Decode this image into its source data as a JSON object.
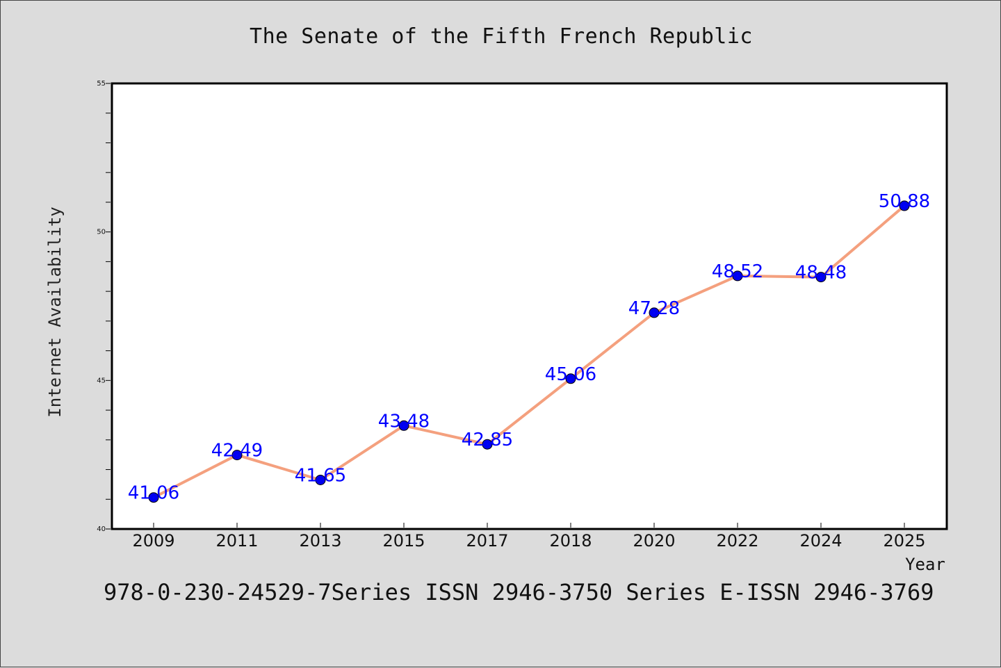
{
  "chart_data": {
    "type": "line",
    "title": "The Senate of the Fifth French Republic",
    "xlabel": "Year",
    "ylabel": "Internet Availability",
    "categories": [
      "2009",
      "2011",
      "2013",
      "2015",
      "2017",
      "2018",
      "2020",
      "2022",
      "2024",
      "2025"
    ],
    "values": [
      41.06,
      42.49,
      41.65,
      43.48,
      42.85,
      45.06,
      47.28,
      48.52,
      48.48,
      50.88
    ],
    "data_labels": [
      "41.06",
      "42.49",
      "41.65",
      "43.48",
      "42.85",
      "45.06",
      "47.28",
      "48.52",
      "48.48",
      "50.88"
    ],
    "ylim": [
      40,
      55
    ],
    "yticks": [
      40,
      45,
      50,
      55
    ],
    "grid": false,
    "line_color": "#f4a07e",
    "marker_color": "#0000ee",
    "label_color": "#0000ff",
    "background_color": "#dcdcdc",
    "plot_background": "#ffffff"
  },
  "footer": "978-0-230-24529-7Series ISSN 2946-3750 Series E-ISSN 2946-3769"
}
